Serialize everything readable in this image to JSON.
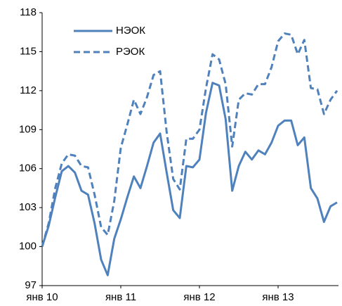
{
  "chart_data": {
    "type": "line",
    "categories": [
      "янв 10",
      null,
      null,
      null,
      null,
      null,
      null,
      null,
      null,
      null,
      null,
      null,
      "янв 11",
      null,
      null,
      null,
      null,
      null,
      null,
      null,
      null,
      null,
      null,
      null,
      "янв 12",
      null,
      null,
      null,
      null,
      null,
      null,
      null,
      null,
      null,
      null,
      null,
      "янв 13",
      null,
      null,
      null,
      null,
      null,
      null,
      null,
      null,
      null
    ],
    "series": [
      {
        "name": "НЭОК",
        "color": "#4f81bd",
        "dash": false,
        "values": [
          100,
          101.6,
          103.8,
          105.8,
          106.2,
          105.7,
          104.3,
          104.0,
          101.8,
          99.0,
          97.8,
          100.6,
          102.1,
          103.8,
          105.4,
          104.5,
          106.2,
          108.0,
          108.7,
          105.7,
          102.8,
          102.2,
          106.2,
          106.1,
          106.7,
          110.3,
          112.6,
          112.4,
          109.8,
          104.3,
          106.2,
          107.3,
          106.7,
          107.4,
          107.1,
          108.0,
          109.3,
          109.7,
          109.7,
          107.8,
          108.4,
          104.5,
          103.7,
          101.9,
          103.1,
          103.4
        ]
      },
      {
        "name": "РЭОК",
        "color": "#4f81bd",
        "dash": true,
        "values": [
          100,
          101.8,
          104.5,
          106.4,
          107.1,
          107.0,
          106.2,
          106.1,
          104.0,
          101.5,
          100.9,
          103.5,
          107.6,
          109.4,
          111.3,
          110.2,
          111.5,
          113.2,
          113.5,
          108.8,
          105.2,
          104.4,
          108.3,
          108.3,
          109.0,
          112.2,
          114.8,
          114.4,
          112.5,
          107.7,
          111.3,
          111.8,
          111.7,
          112.5,
          112.5,
          113.8,
          115.8,
          116.4,
          116.3,
          114.8,
          115.9,
          112.2,
          112.1,
          110.2,
          111.3,
          112.0
        ]
      }
    ],
    "ylim": [
      97,
      118
    ],
    "yticks": [
      97,
      100,
      103,
      106,
      109,
      112,
      115,
      118
    ],
    "legend": "upper left",
    "grid": false
  }
}
